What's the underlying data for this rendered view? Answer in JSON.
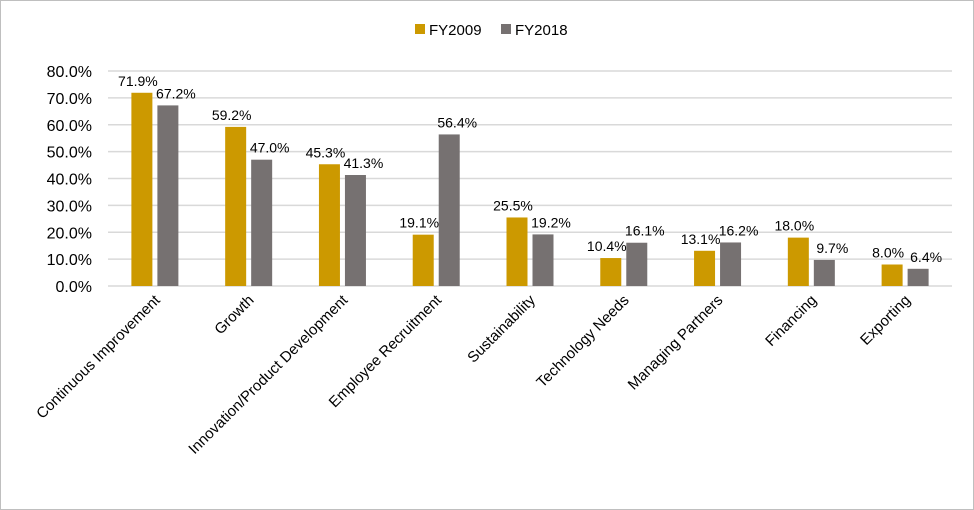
{
  "chart_data": {
    "type": "bar",
    "title": "",
    "xlabel": "",
    "ylabel": "",
    "categories": [
      "Continuous Improvement",
      "Growth",
      "Innovation/Product Development",
      "Employee Recruitment",
      "Sustainability",
      "Technology Needs",
      "Managing Partners",
      "Financing",
      "Exporting"
    ],
    "series": [
      {
        "name": "FY2009",
        "color": "#cc9900",
        "values": [
          71.9,
          59.2,
          45.3,
          19.1,
          25.5,
          10.4,
          13.1,
          18.0,
          8.0
        ]
      },
      {
        "name": "FY2018",
        "color": "#767171",
        "values": [
          67.2,
          47.0,
          41.3,
          56.4,
          19.2,
          16.1,
          16.2,
          9.7,
          6.4
        ]
      }
    ],
    "ylim": [
      0,
      80
    ],
    "yticks": [
      "0.0%",
      "10.0%",
      "20.0%",
      "30.0%",
      "40.0%",
      "50.0%",
      "60.0%",
      "70.0%",
      "80.0%"
    ],
    "data_labels": true,
    "grid": true,
    "gridline_color": "#d9d9d9",
    "legend_position": "top"
  }
}
